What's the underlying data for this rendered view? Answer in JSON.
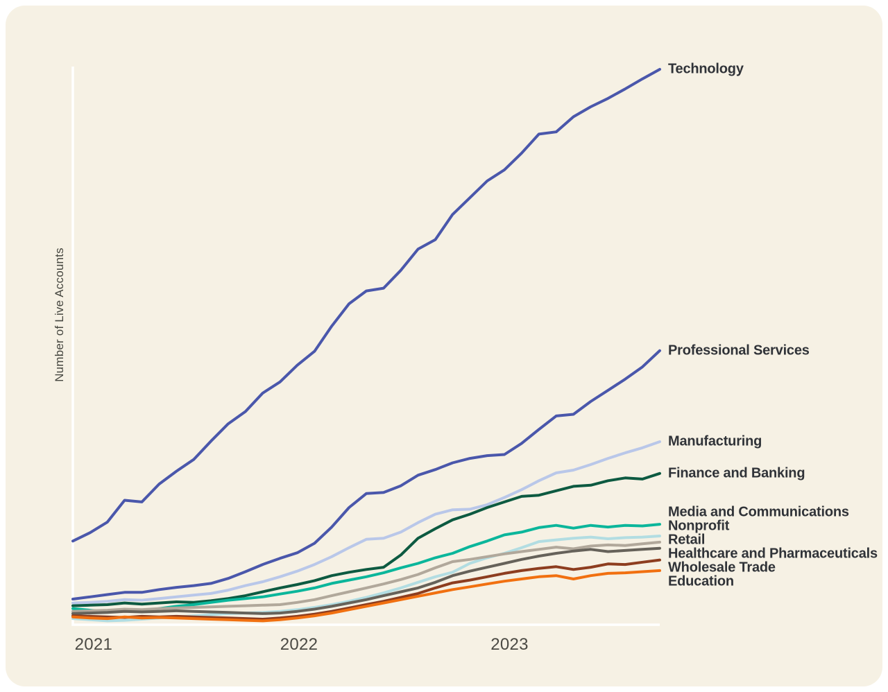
{
  "page": {
    "background": "#ffffff",
    "card_background": "#f6f1e4",
    "axis_color": "#ffffff",
    "series_label_color": "#303338",
    "tick_label_color": "#4b4a44"
  },
  "chart_data": {
    "type": "line",
    "title": "",
    "xlabel": "",
    "ylabel": "Number of Live Accounts",
    "ylim": [
      0,
      100
    ],
    "grid": false,
    "legend_position": "right-edge-direct-labels",
    "x_months": 34,
    "x_tick_labels": [
      "2021",
      "2022",
      "2023"
    ],
    "x_tick_positions": [
      1.2,
      13.1,
      25.3
    ],
    "series": [
      {
        "name": "Technology",
        "color": "#4a57ab",
        "values": [
          15.0,
          16.5,
          18.4,
          22.3,
          22.0,
          25.2,
          27.5,
          29.6,
          32.9,
          36.0,
          38.2,
          41.5,
          43.5,
          46.5,
          49.0,
          53.5,
          57.5,
          59.8,
          60.3,
          63.5,
          67.3,
          69.0,
          73.5,
          76.5,
          79.5,
          81.5,
          84.5,
          87.9,
          88.3,
          91.0,
          92.8,
          94.3,
          96.0,
          97.8,
          99.5
        ]
      },
      {
        "name": "Professional Services",
        "color": "#4a57ab",
        "values": [
          4.6,
          5.0,
          5.4,
          5.8,
          5.8,
          6.3,
          6.7,
          7.0,
          7.4,
          8.3,
          9.5,
          10.8,
          11.9,
          12.9,
          14.6,
          17.5,
          21.0,
          23.5,
          23.7,
          24.9,
          26.8,
          27.8,
          29.0,
          29.8,
          30.3,
          30.5,
          32.5,
          35.0,
          37.4,
          37.7,
          40.0,
          42.0,
          44.0,
          46.2,
          49.1
        ]
      },
      {
        "name": "Manufacturing",
        "color": "#b9c7e9",
        "values": [
          3.9,
          4.0,
          4.2,
          4.5,
          4.4,
          4.7,
          5.0,
          5.3,
          5.6,
          6.2,
          7.0,
          7.7,
          8.6,
          9.6,
          10.8,
          12.2,
          13.8,
          15.3,
          15.5,
          16.6,
          18.3,
          19.8,
          20.6,
          20.7,
          21.5,
          22.8,
          24.2,
          25.8,
          27.2,
          27.7,
          28.7,
          29.8,
          30.8,
          31.7,
          32.8
        ]
      },
      {
        "name": "Finance and Banking",
        "color": "#0d5a41",
        "values": [
          3.4,
          3.5,
          3.6,
          3.9,
          3.7,
          3.9,
          4.1,
          4.0,
          4.3,
          4.7,
          5.2,
          5.9,
          6.6,
          7.2,
          7.9,
          8.8,
          9.4,
          9.9,
          10.3,
          12.5,
          15.5,
          17.2,
          18.8,
          19.8,
          21.0,
          22.0,
          23.0,
          23.2,
          24.0,
          24.8,
          25.0,
          25.8,
          26.3,
          26.1,
          27.1
        ]
      },
      {
        "name": "Media and Communications",
        "color": "#0bb69b",
        "values": [
          2.9,
          2.6,
          2.3,
          2.5,
          2.4,
          2.9,
          3.3,
          3.6,
          4.0,
          4.4,
          4.7,
          5.0,
          5.5,
          6.0,
          6.6,
          7.4,
          8.0,
          8.6,
          9.3,
          10.2,
          11.0,
          12.0,
          12.8,
          14.0,
          15.0,
          16.1,
          16.6,
          17.4,
          17.8,
          17.3,
          17.8,
          17.5,
          17.8,
          17.7,
          18.0
        ]
      },
      {
        "name": "Nonprofit",
        "color": "#b2dde2",
        "values": [
          1.1,
          0.9,
          0.7,
          0.8,
          1.0,
          1.2,
          1.4,
          1.6,
          1.8,
          2.0,
          2.1,
          2.2,
          2.4,
          2.7,
          3.1,
          3.6,
          4.2,
          4.9,
          5.7,
          6.6,
          7.6,
          8.6,
          9.4,
          11.0,
          12.0,
          12.8,
          13.8,
          14.9,
          15.2,
          15.5,
          15.7,
          15.4,
          15.6,
          15.7,
          15.9
        ]
      },
      {
        "name": "Retail",
        "color": "#b1a89b",
        "values": [
          2.4,
          2.5,
          2.6,
          2.8,
          2.7,
          2.9,
          3.0,
          3.1,
          3.2,
          3.3,
          3.4,
          3.5,
          3.6,
          4.0,
          4.5,
          5.2,
          5.9,
          6.6,
          7.3,
          8.1,
          9.0,
          10.2,
          11.3,
          11.7,
          12.2,
          12.7,
          13.1,
          13.5,
          13.9,
          13.6,
          14.1,
          14.3,
          14.2,
          14.5,
          14.8
        ]
      },
      {
        "name": "Healthcare and Pharmaceuticals",
        "color": "#66625a",
        "values": [
          2.0,
          2.1,
          2.2,
          2.4,
          2.3,
          2.4,
          2.5,
          2.4,
          2.3,
          2.2,
          2.1,
          2.0,
          2.1,
          2.4,
          2.8,
          3.3,
          3.9,
          4.5,
          5.2,
          5.9,
          6.6,
          7.6,
          8.8,
          9.6,
          10.3,
          11.0,
          11.7,
          12.3,
          12.8,
          13.2,
          13.5,
          13.1,
          13.3,
          13.5,
          13.7
        ]
      },
      {
        "name": "Wholesale Trade",
        "color": "#8d3d1f",
        "values": [
          1.6,
          1.5,
          1.4,
          1.3,
          1.5,
          1.4,
          1.5,
          1.4,
          1.3,
          1.2,
          1.1,
          1.0,
          1.2,
          1.5,
          1.9,
          2.4,
          3.0,
          3.6,
          4.2,
          4.9,
          5.6,
          6.6,
          7.5,
          8.0,
          8.6,
          9.2,
          9.7,
          10.1,
          10.4,
          9.9,
          10.3,
          10.9,
          10.8,
          11.2,
          11.6
        ]
      },
      {
        "name": "Education",
        "color": "#f17010",
        "values": [
          1.4,
          1.2,
          1.1,
          1.4,
          1.2,
          1.3,
          1.2,
          1.1,
          1.0,
          0.9,
          0.8,
          0.7,
          0.9,
          1.2,
          1.6,
          2.1,
          2.7,
          3.3,
          3.9,
          4.5,
          5.1,
          5.7,
          6.3,
          6.8,
          7.3,
          7.8,
          8.2,
          8.6,
          8.8,
          8.2,
          8.8,
          9.2,
          9.3,
          9.5,
          9.7
        ]
      }
    ]
  }
}
